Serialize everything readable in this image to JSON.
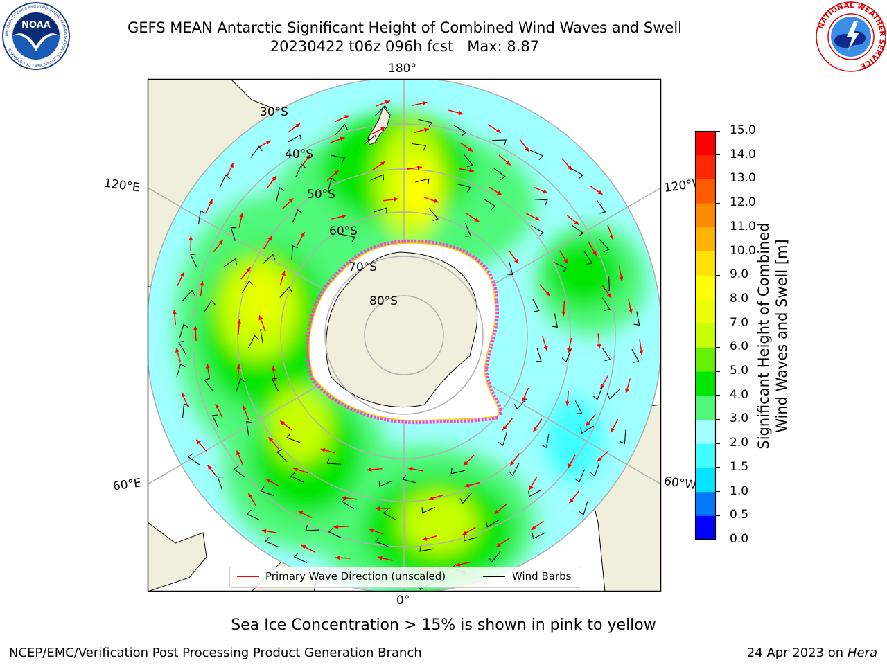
{
  "header": {
    "title_line1": "GEFS MEAN Antarctic Significant Height of Combined Wind Waves and Swell",
    "title_line2": "20230422 t06z 096h fcst   Max: 8.87"
  },
  "logos": {
    "left": {
      "name": "noaa-logo",
      "text": "NOAA",
      "ring_text": "NATIONAL OCEANIC AND ATMOSPHERIC ADMINISTRATION  U.S. DEPARTMENT OF COMMERCE"
    },
    "right": {
      "name": "nws-logo",
      "ring_text": "NATIONAL WEATHER SERVICE"
    }
  },
  "map": {
    "longitude_labels": {
      "top": "180°",
      "bottom": "0°",
      "upper_left": "120°E",
      "lower_left": "60°E",
      "upper_right": "120°W",
      "lower_right": "60°W"
    },
    "latitude_labels": [
      "30°S",
      "40°S",
      "50°S",
      "60°S",
      "70°S",
      "80°S"
    ],
    "legend": {
      "wave_label": "Primary Wave Direction (unscaled)",
      "wave_color": "#ff0000",
      "barb_label": "Wind Barbs",
      "barb_color": "#000000"
    }
  },
  "colorbar": {
    "label_line1": "Significant Height of Combined",
    "label_line2": "Wind Waves and Swell [m]",
    "ticks": [
      "0.0",
      "0.5",
      "1.0",
      "1.5",
      "2.0",
      "3.0",
      "4.0",
      "5.0",
      "6.0",
      "7.0",
      "8.0",
      "9.0",
      "10.0",
      "11.0",
      "12.0",
      "13.0",
      "14.0",
      "15.0"
    ],
    "colors": [
      "#0000ff",
      "#0078ff",
      "#00e5ff",
      "#40ffff",
      "#a0ffff",
      "#50f878",
      "#00e600",
      "#64f000",
      "#c8ff00",
      "#ebff00",
      "#ffff00",
      "#ffe100",
      "#ffb400",
      "#ff8c00",
      "#ff5a00",
      "#ff2800",
      "#ff0000"
    ]
  },
  "caption": "Sea Ice Concentration > 15% is shown in pink to yellow",
  "footer": {
    "left": "NCEP/EMC/Verification Post Processing Product Generation Branch",
    "right_date": "24 Apr 2023 on ",
    "right_machine": "Hera"
  }
}
